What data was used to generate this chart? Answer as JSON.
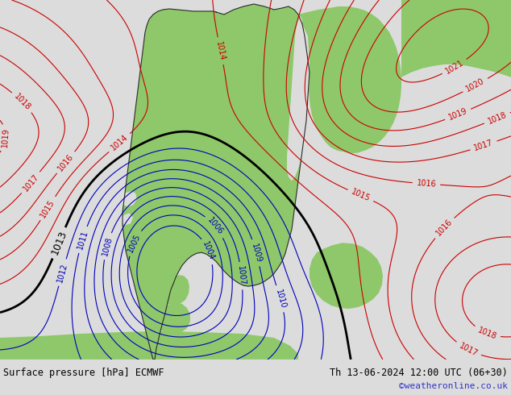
{
  "title_left": "Surface pressure [hPa] ECMWF",
  "title_right": "Th 13-06-2024 12:00 UTC (06+30)",
  "copyright": "©weatheronline.co.uk",
  "bg_color": "#dcdcdc",
  "land_color": "#8ec86a",
  "sea_color": "#dcdcdc",
  "border_color": "#2a2a2a",
  "label_color_black": "#000000",
  "label_color_blue": "#0000bb",
  "label_color_red": "#cc0000",
  "bottom_bar_color": "#d4d4d4",
  "bottom_text_color": "#000000",
  "copyright_color": "#3333cc",
  "figsize": [
    6.34,
    4.9
  ],
  "dpi": 100,
  "note": "Pressure pattern: High ~1017+ NW offshore, ~1017+ NE (Russia). Low center ~1008 Norway coast, trough ~1009-1010 Sweden. 1013 isobar runs W-E across Norway latitude then curves south."
}
